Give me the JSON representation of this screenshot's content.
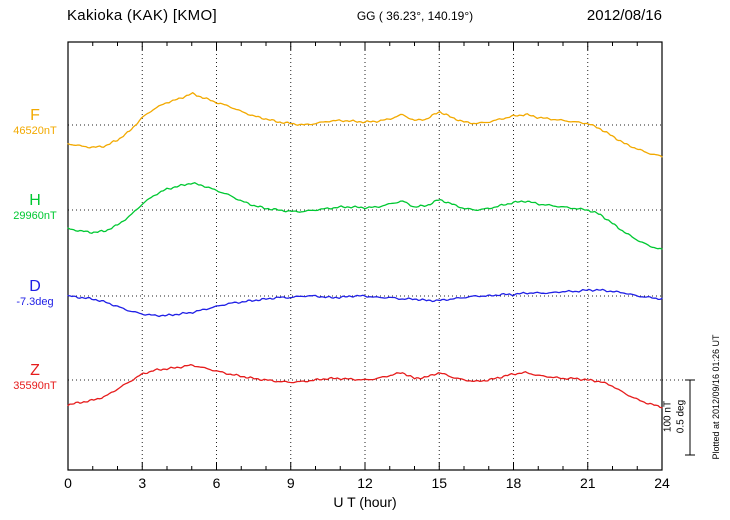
{
  "header": {
    "station": "Kakioka (KAK)  [KMO]",
    "coords": "GG ( 36.23°, 140.19°)",
    "date": "2012/08/16"
  },
  "axes": {
    "x_label": "U T (hour)",
    "x_ticks": [
      0,
      3,
      6,
      9,
      12,
      15,
      18,
      21,
      24
    ],
    "x_min": 0,
    "x_max": 24
  },
  "channels": [
    {
      "id": "F",
      "label": "F",
      "value_label": "46520nT",
      "color": "#f2a900"
    },
    {
      "id": "H",
      "label": "H",
      "value_label": "29960nT",
      "color": "#00c832"
    },
    {
      "id": "D",
      "label": "D",
      "value_label": "-7.3deg",
      "color": "#2020e6"
    },
    {
      "id": "Z",
      "label": "Z",
      "value_label": "35590nT",
      "color": "#e61c1c"
    }
  ],
  "scale_bar": {
    "nt_label": "100 nT",
    "deg_label": "0.5 deg"
  },
  "footer_note": "Plotted at 2012/09/16 01:26 UT",
  "chart_data": {
    "type": "line",
    "title": "Kakioka (KAK) [KMO] magnetogram 2012/08/16",
    "xlabel": "U T (hour)",
    "x_unit": "hour",
    "x_range": [
      0,
      24
    ],
    "x_step": 0.5,
    "grid": "dotted",
    "scale": {
      "nT_per_div": 100,
      "deg_per_div": 0.5
    },
    "series": [
      {
        "name": "F",
        "unit": "nT",
        "baseline": 46520,
        "color": "#f2a900",
        "values": [
          -25,
          -28,
          -30,
          -28,
          -20,
          -8,
          10,
          22,
          30,
          35,
          42,
          36,
          30,
          25,
          18,
          12,
          8,
          4,
          2,
          0,
          2,
          5,
          6,
          5,
          4,
          5,
          8,
          14,
          6,
          8,
          18,
          10,
          4,
          2,
          4,
          8,
          12,
          14,
          10,
          8,
          6,
          4,
          2,
          -5,
          -15,
          -25,
          -32,
          -38,
          -42
        ]
      },
      {
        "name": "H",
        "unit": "nT",
        "baseline": 29960,
        "color": "#00c832",
        "values": [
          -25,
          -28,
          -30,
          -28,
          -20,
          -8,
          8,
          20,
          28,
          32,
          36,
          32,
          26,
          20,
          12,
          6,
          2,
          0,
          -2,
          -2,
          0,
          2,
          4,
          4,
          3,
          4,
          8,
          12,
          4,
          6,
          14,
          8,
          2,
          0,
          2,
          6,
          10,
          12,
          8,
          6,
          4,
          2,
          0,
          -6,
          -18,
          -30,
          -40,
          -48,
          -53
        ]
      },
      {
        "name": "D",
        "unit": "deg",
        "baseline": -7.3,
        "color": "#2020e6",
        "values": [
          0,
          -0.01,
          -0.02,
          -0.04,
          -0.07,
          -0.1,
          -0.12,
          -0.13,
          -0.13,
          -0.12,
          -0.11,
          -0.09,
          -0.07,
          -0.05,
          -0.04,
          -0.03,
          -0.02,
          -0.01,
          -0.01,
          0,
          0,
          -0.01,
          -0.01,
          0,
          0,
          -0.01,
          -0.01,
          -0.02,
          -0.02,
          -0.03,
          -0.03,
          -0.02,
          -0.01,
          0,
          0,
          0.01,
          0.01,
          0.02,
          0.02,
          0.02,
          0.03,
          0.03,
          0.04,
          0.04,
          0.03,
          0.02,
          0,
          -0.01,
          -0.02
        ]
      },
      {
        "name": "Z",
        "unit": "nT",
        "baseline": 35590,
        "color": "#e61c1c",
        "values": [
          -33,
          -30,
          -27,
          -22,
          -12,
          -2,
          8,
          13,
          15,
          17,
          20,
          16,
          12,
          8,
          5,
          2,
          0,
          -2,
          -3,
          -2,
          0,
          2,
          2,
          1,
          0,
          2,
          6,
          10,
          2,
          4,
          10,
          4,
          0,
          -2,
          0,
          4,
          8,
          10,
          6,
          4,
          2,
          2,
          0,
          -2,
          -8,
          -18,
          -26,
          -32,
          -36
        ]
      }
    ]
  }
}
